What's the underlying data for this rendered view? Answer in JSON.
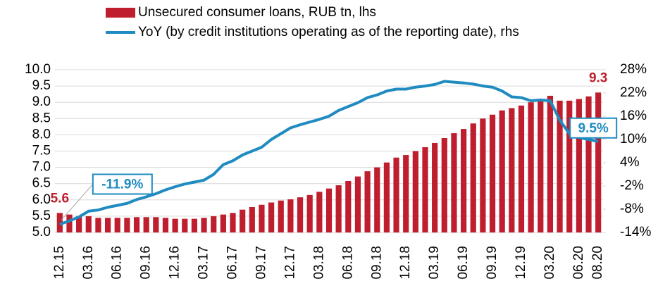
{
  "chart_data": {
    "type": "bar-line",
    "categories": [
      "12.15",
      null,
      null,
      "03.16",
      null,
      null,
      "06.16",
      null,
      null,
      "09.16",
      null,
      null,
      "12.16",
      null,
      null,
      "03.17",
      null,
      null,
      "06.17",
      null,
      null,
      "09.17",
      null,
      null,
      "12.17",
      null,
      null,
      "03.18",
      null,
      null,
      "06.18",
      null,
      null,
      "09.18",
      null,
      null,
      "12.18",
      null,
      null,
      "03.19",
      null,
      null,
      "06.19",
      null,
      null,
      "09.19",
      null,
      null,
      "12.19",
      null,
      null,
      "03.20",
      null,
      null,
      "06.20",
      null,
      "08.20"
    ],
    "series": [
      {
        "name": "Unsecured consumer loans, RUB tn, lhs",
        "type": "bar",
        "color": "#be1e2d",
        "axis": "y",
        "values": [
          5.6,
          5.55,
          5.5,
          5.5,
          5.45,
          5.45,
          5.45,
          5.45,
          5.47,
          5.47,
          5.47,
          5.45,
          5.42,
          5.42,
          5.42,
          5.45,
          5.5,
          5.55,
          5.6,
          5.7,
          5.78,
          5.85,
          5.92,
          5.98,
          6.02,
          6.08,
          6.15,
          6.25,
          6.35,
          6.45,
          6.58,
          6.72,
          6.88,
          7.0,
          7.15,
          7.3,
          7.38,
          7.5,
          7.62,
          7.75,
          7.9,
          8.05,
          8.18,
          8.35,
          8.5,
          8.62,
          8.75,
          8.82,
          8.9,
          9.0,
          9.1,
          9.2,
          9.05,
          9.05,
          9.1,
          9.18,
          9.3
        ],
        "value_labels": [
          "5.6",
          null,
          null,
          null,
          null,
          null,
          null,
          null,
          null,
          null,
          null,
          null,
          null,
          null,
          null,
          null,
          null,
          null,
          null,
          null,
          null,
          null,
          null,
          null,
          null,
          null,
          null,
          null,
          null,
          null,
          null,
          null,
          null,
          null,
          null,
          null,
          null,
          null,
          null,
          null,
          null,
          null,
          null,
          null,
          null,
          null,
          null,
          null,
          null,
          null,
          null,
          null,
          null,
          null,
          null,
          null,
          "9.3"
        ]
      },
      {
        "name": "YoY (by credit institutions operating as of the reporting date), rhs",
        "type": "line",
        "color": "#1f8bc0",
        "axis": "y2",
        "values": [
          -11.9,
          -11,
          -10,
          -8.5,
          -8.2,
          -7.5,
          -7,
          -6.5,
          -5.5,
          -4.8,
          -4,
          -3,
          -2.2,
          -1.5,
          -1,
          -0.5,
          1,
          3.5,
          4.5,
          6,
          7,
          8,
          10,
          11.5,
          13,
          13.8,
          14.5,
          15.2,
          16,
          17.5,
          18.5,
          19.5,
          20.8,
          21.5,
          22.5,
          23,
          23,
          23.5,
          23.8,
          24.2,
          25,
          24.8,
          24.6,
          24.3,
          23.8,
          23.5,
          22.5,
          21,
          20.8,
          20,
          20.2,
          20,
          15,
          11.5,
          10.5,
          10,
          9.5
        ],
        "value_labels": [
          "-11.9%",
          null,
          null,
          null,
          null,
          null,
          null,
          null,
          null,
          null,
          null,
          null,
          null,
          null,
          null,
          null,
          null,
          null,
          null,
          null,
          null,
          null,
          null,
          null,
          null,
          null,
          null,
          null,
          null,
          null,
          null,
          null,
          null,
          null,
          null,
          null,
          null,
          null,
          null,
          null,
          null,
          null,
          null,
          null,
          null,
          null,
          null,
          null,
          null,
          null,
          null,
          null,
          null,
          null,
          null,
          null,
          "9.5%"
        ]
      }
    ],
    "ylim": [
      5,
      10
    ],
    "yticks": [
      {
        "value": 5,
        "label": "5.0"
      },
      5.5,
      {
        "value": 6,
        "label": "6.0"
      },
      6.5,
      {
        "value": 7,
        "label": "7.0"
      },
      7.5,
      {
        "value": 8,
        "label": "8.0"
      },
      8.5,
      {
        "value": 9,
        "label": "9.0"
      },
      9.5,
      {
        "value": 10,
        "label": "10.0"
      }
    ],
    "y2lim": [
      -14,
      28
    ],
    "y2ticks": [
      {
        "value": -14,
        "label": "-14%"
      },
      {
        "value": -8,
        "label": "-8%"
      },
      {
        "value": -2,
        "label": "-2%"
      },
      {
        "value": 4,
        "label": "4%"
      },
      {
        "value": 10,
        "label": "10%"
      },
      {
        "value": 16,
        "label": "16%"
      },
      {
        "value": 22,
        "label": "22%"
      },
      {
        "value": 28,
        "label": "28%"
      }
    ],
    "grid": true
  }
}
